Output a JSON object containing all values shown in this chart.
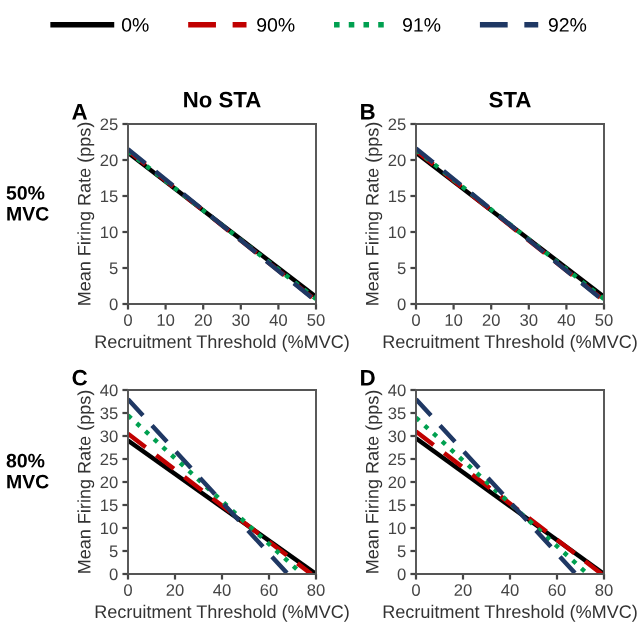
{
  "chart_data": [
    {
      "type": "line",
      "title": "No STA",
      "xlabel": "Recruitment Threshold (%MVC)",
      "ylabel": "Mean Firing Rate (pps)",
      "annotations": [
        "A",
        "50%\nMVC"
      ],
      "xlim": [
        0,
        50
      ],
      "ylim": [
        0,
        25
      ],
      "xticks": [
        0,
        10,
        20,
        30,
        40,
        50
      ],
      "yticks": [
        0,
        5,
        10,
        15,
        20,
        25
      ],
      "grid": false,
      "legend": "top",
      "series": [
        {
          "name": "0%",
          "color": "#000000",
          "line_style": "solid",
          "x": [
            0,
            50
          ],
          "values": [
            21,
            1
          ]
        },
        {
          "name": "90%",
          "color": "#c00000",
          "line_style": "dashed",
          "x": [
            0,
            50
          ],
          "values": [
            21.3,
            0.5
          ]
        },
        {
          "name": "91%",
          "color": "#00a050",
          "line_style": "dotted",
          "x": [
            0,
            50
          ],
          "values": [
            21.2,
            0.7
          ]
        },
        {
          "name": "92%",
          "color": "#1f3864",
          "line_style": "dashed",
          "x": [
            0,
            50
          ],
          "values": [
            21.5,
            0.4
          ]
        }
      ]
    },
    {
      "type": "line",
      "title": "STA",
      "xlabel": "Recruitment Threshold (%MVC)",
      "ylabel": "Mean Firing Rate (pps)",
      "annotations": [
        "B"
      ],
      "xlim": [
        0,
        50
      ],
      "ylim": [
        0,
        25
      ],
      "xticks": [
        0,
        10,
        20,
        30,
        40,
        50
      ],
      "yticks": [
        0,
        5,
        10,
        15,
        20,
        25
      ],
      "grid": false,
      "series": [
        {
          "color": "#000000",
          "line_style": "solid",
          "x": [
            0,
            50
          ],
          "values": [
            21,
            1
          ]
        },
        {
          "color": "#c00000",
          "line_style": "dashed",
          "x": [
            0,
            50
          ],
          "values": [
            21.3,
            0.5
          ]
        },
        {
          "color": "#00a050",
          "line_style": "dotted",
          "x": [
            0,
            50
          ],
          "values": [
            21.4,
            0.7
          ]
        },
        {
          "color": "#1f3864",
          "line_style": "dashed",
          "x": [
            0,
            50
          ],
          "values": [
            21.6,
            0.4
          ]
        }
      ]
    },
    {
      "type": "line",
      "xlabel": "Recruitment Threshold (%MVC)",
      "ylabel": "Mean Firing Rate (pps)",
      "annotations": [
        "C",
        "80%\nMVC"
      ],
      "xlim": [
        0,
        80
      ],
      "ylim": [
        0,
        40
      ],
      "xticks": [
        0,
        20,
        40,
        60,
        80
      ],
      "yticks": [
        0,
        5,
        10,
        15,
        20,
        25,
        30,
        35,
        40
      ],
      "grid": false,
      "series": [
        {
          "color": "#000000",
          "line_style": "solid",
          "x": [
            0,
            80
          ],
          "values": [
            29,
            0
          ]
        },
        {
          "color": "#c00000",
          "line_style": "dashed",
          "x": [
            0,
            78
          ],
          "values": [
            30.5,
            0
          ]
        },
        {
          "color": "#00a050",
          "line_style": "dotted",
          "x": [
            0,
            74
          ],
          "values": [
            34.5,
            0
          ]
        },
        {
          "color": "#1f3864",
          "line_style": "dashed",
          "x": [
            0,
            68
          ],
          "values": [
            38,
            0
          ]
        }
      ]
    },
    {
      "type": "line",
      "xlabel": "Recruitment Threshold (%MVC)",
      "ylabel": "Mean Firing Rate (pps)",
      "annotations": [
        "D"
      ],
      "xlim": [
        0,
        80
      ],
      "ylim": [
        0,
        40
      ],
      "xticks": [
        0,
        20,
        40,
        60,
        80
      ],
      "yticks": [
        0,
        5,
        10,
        15,
        20,
        25,
        30,
        35,
        40
      ],
      "grid": false,
      "series": [
        {
          "color": "#000000",
          "line_style": "solid",
          "x": [
            0,
            80
          ],
          "values": [
            29.5,
            0
          ]
        },
        {
          "color": "#c00000",
          "line_style": "dashed",
          "x": [
            0,
            79
          ],
          "values": [
            31,
            0
          ]
        },
        {
          "color": "#00a050",
          "line_style": "dotted",
          "x": [
            0,
            73
          ],
          "values": [
            34,
            0
          ]
        },
        {
          "color": "#1f3864",
          "line_style": "dashed",
          "x": [
            0,
            68
          ],
          "values": [
            38,
            0
          ]
        }
      ]
    }
  ]
}
